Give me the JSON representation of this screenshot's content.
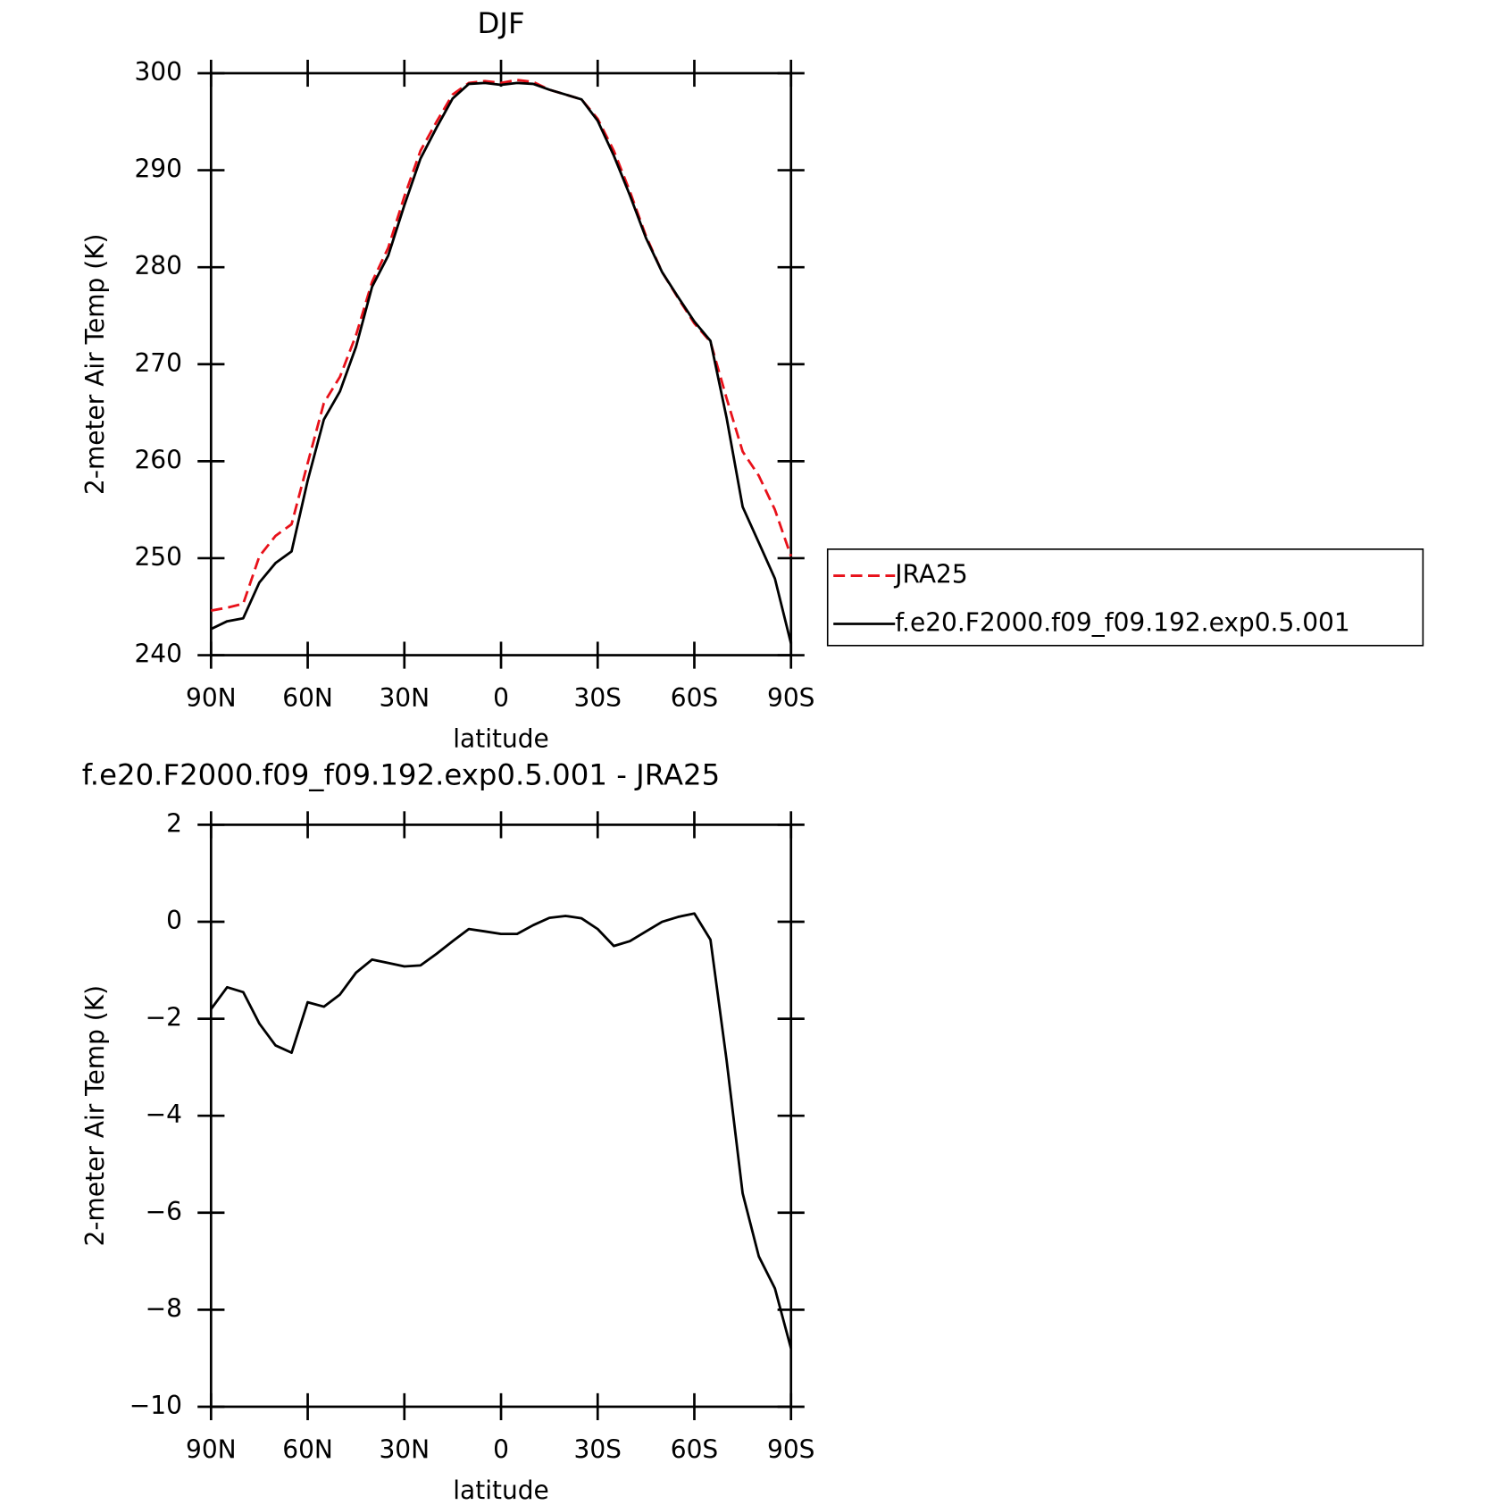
{
  "chart_data": [
    {
      "type": "line",
      "title": "DJF",
      "x_label": "latitude",
      "y_label": "2-meter Air Temp (K)",
      "x": [
        90,
        85,
        80,
        75,
        70,
        65,
        60,
        55,
        50,
        45,
        40,
        35,
        30,
        25,
        20,
        15,
        10,
        5,
        0,
        -5,
        -10,
        -15,
        -20,
        -25,
        -30,
        -35,
        -40,
        -45,
        -50,
        -55,
        -60,
        -65,
        -70,
        -75,
        -80,
        -85,
        -90
      ],
      "xlim": [
        90,
        -90
      ],
      "xticks": [
        {
          "value": 90,
          "label": "90N"
        },
        {
          "value": 60,
          "label": "60N"
        },
        {
          "value": 30,
          "label": "30N"
        },
        0,
        {
          "value": -30,
          "label": "30S"
        },
        {
          "value": -60,
          "label": "60S"
        },
        {
          "value": -90,
          "label": "90S"
        }
      ],
      "ylim": [
        240,
        300
      ],
      "yticks": [
        240,
        250,
        260,
        270,
        280,
        290,
        300
      ],
      "legend": "outside-right",
      "series": [
        {
          "name": "JRA25",
          "color": "#e8111a",
          "dash": true,
          "values": [
            244.6,
            244.9,
            245.3,
            250.2,
            252.3,
            253.5,
            259.8,
            266.0,
            268.7,
            273.0,
            278.5,
            282.0,
            287.3,
            292.0,
            295.0,
            297.8,
            299.0,
            299.2,
            299.0,
            299.3,
            299.1,
            298.3,
            297.8,
            297.3,
            295.3,
            292.0,
            287.8,
            283.2,
            279.5,
            276.8,
            274.2,
            272.3,
            266.5,
            261.0,
            258.5,
            255.0,
            250.2
          ]
        },
        {
          "name": "f.e20.F2000.f09_f09.192.exp0.5.001",
          "color": "#000000",
          "dash": false,
          "values": [
            242.7,
            243.5,
            243.8,
            247.5,
            249.5,
            250.7,
            258.0,
            264.3,
            267.2,
            271.8,
            278.0,
            281.2,
            286.4,
            291.2,
            294.4,
            297.4,
            298.9,
            299.0,
            298.8,
            299.0,
            298.9,
            298.3,
            297.8,
            297.3,
            295.1,
            291.5,
            287.4,
            283.0,
            279.5,
            276.9,
            274.4,
            272.4,
            264.5,
            255.3,
            251.6,
            247.9,
            241.2
          ]
        }
      ]
    },
    {
      "type": "line",
      "title": "f.e20.F2000.f09_f09.192.exp0.5.001 - JRA25",
      "x_label": "latitude",
      "y_label": "2-meter Air Temp (K)",
      "x": [
        90,
        85,
        80,
        75,
        70,
        65,
        60,
        55,
        50,
        45,
        40,
        35,
        30,
        25,
        20,
        15,
        10,
        5,
        0,
        -5,
        -10,
        -15,
        -20,
        -25,
        -30,
        -35,
        -40,
        -45,
        -50,
        -55,
        -60,
        -65,
        -70,
        -75,
        -80,
        -85,
        -90
      ],
      "xlim": [
        90,
        -90
      ],
      "xticks": [
        {
          "value": 90,
          "label": "90N"
        },
        {
          "value": 60,
          "label": "60N"
        },
        {
          "value": 30,
          "label": "30N"
        },
        0,
        {
          "value": -30,
          "label": "30S"
        },
        {
          "value": -60,
          "label": "60S"
        },
        {
          "value": -90,
          "label": "90S"
        }
      ],
      "ylim": [
        -10,
        2
      ],
      "yticks": [
        {
          "value": -10,
          "label": "−10"
        },
        {
          "value": -8,
          "label": "−8"
        },
        {
          "value": -6,
          "label": "−6"
        },
        {
          "value": -4,
          "label": "−4"
        },
        {
          "value": -2,
          "label": "−2"
        },
        0,
        2
      ],
      "series": [
        {
          "color": "#000000",
          "dash": false,
          "values": [
            -1.8,
            -1.35,
            -1.45,
            -2.1,
            -2.55,
            -2.7,
            -1.66,
            -1.75,
            -1.5,
            -1.05,
            -0.78,
            -0.85,
            -0.92,
            -0.9,
            -0.66,
            -0.4,
            -0.15,
            -0.2,
            -0.25,
            -0.25,
            -0.07,
            0.08,
            0.12,
            0.07,
            -0.15,
            -0.5,
            -0.4,
            -0.2,
            0.0,
            0.1,
            0.17,
            -0.37,
            -2.85,
            -5.6,
            -6.9,
            -7.56,
            -8.8
          ]
        }
      ]
    }
  ]
}
